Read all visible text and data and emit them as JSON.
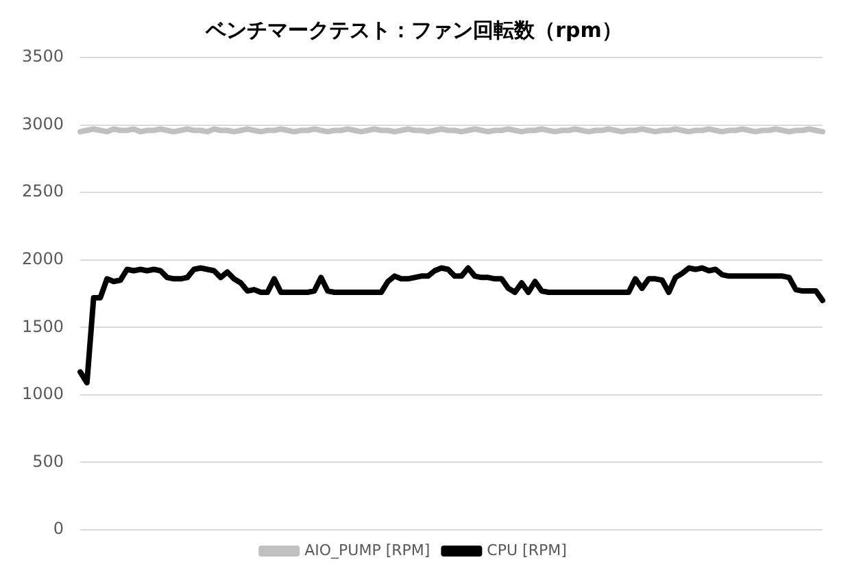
{
  "chart_data": {
    "type": "line",
    "title": "ベンチマークテスト：ファン回転数（rpm）",
    "categories": [
      null,
      null,
      null,
      null,
      null,
      null,
      null,
      null,
      null,
      null,
      null,
      null,
      null,
      null,
      null,
      null,
      null,
      null,
      null,
      null,
      null,
      null,
      null,
      null,
      null,
      null,
      null,
      null,
      null,
      null,
      null,
      null,
      null,
      null,
      null,
      null,
      null,
      null,
      null,
      null,
      null,
      null,
      null,
      null,
      null,
      null,
      null,
      null,
      null,
      null,
      null,
      null,
      null,
      null,
      null,
      null,
      null,
      null,
      null,
      null,
      null,
      null,
      null,
      null,
      null,
      null,
      null,
      null,
      null,
      null,
      null,
      null,
      null,
      null,
      null,
      null,
      null,
      null,
      null,
      null,
      null,
      null,
      null,
      null,
      null,
      null,
      null,
      null,
      null,
      null,
      null,
      null,
      null,
      null,
      null,
      null,
      null,
      null,
      null,
      null,
      null,
      null,
      null,
      null,
      null,
      null,
      null,
      null,
      null,
      null,
      null,
      null
    ],
    "series": [
      {
        "name": "AIO_PUMP [RPM]",
        "color": "#c0c0c0",
        "values": [
          2950,
          2960,
          2970,
          2960,
          2950,
          2970,
          2960,
          2960,
          2970,
          2950,
          2960,
          2960,
          2970,
          2960,
          2950,
          2960,
          2970,
          2960,
          2960,
          2950,
          2970,
          2960,
          2960,
          2950,
          2960,
          2970,
          2960,
          2950,
          2960,
          2960,
          2970,
          2960,
          2950,
          2960,
          2960,
          2970,
          2960,
          2950,
          2960,
          2960,
          2970,
          2960,
          2950,
          2960,
          2970,
          2960,
          2960,
          2950,
          2960,
          2970,
          2960,
          2960,
          2950,
          2960,
          2970,
          2960,
          2960,
          2950,
          2960,
          2970,
          2960,
          2950,
          2960,
          2960,
          2970,
          2960,
          2950,
          2960,
          2960,
          2970,
          2960,
          2950,
          2960,
          2960,
          2970,
          2960,
          2950,
          2960,
          2960,
          2970,
          2960,
          2950,
          2960,
          2960,
          2970,
          2960,
          2950,
          2960,
          2960,
          2970,
          2960,
          2950,
          2960,
          2960,
          2970,
          2960,
          2950,
          2960,
          2960,
          2970,
          2960,
          2950,
          2960,
          2960,
          2970,
          2960,
          2950,
          2960,
          2960,
          2970,
          2960,
          2950
        ]
      },
      {
        "name": "CPU [RPM]",
        "color": "#000000",
        "values": [
          1170,
          1090,
          1720,
          1720,
          1860,
          1840,
          1850,
          1930,
          1920,
          1930,
          1920,
          1930,
          1920,
          1870,
          1860,
          1860,
          1870,
          1930,
          1940,
          1930,
          1920,
          1870,
          1910,
          1860,
          1830,
          1770,
          1780,
          1760,
          1760,
          1860,
          1760,
          1760,
          1760,
          1760,
          1760,
          1770,
          1870,
          1770,
          1760,
          1760,
          1760,
          1760,
          1760,
          1760,
          1760,
          1760,
          1840,
          1880,
          1860,
          1860,
          1870,
          1880,
          1880,
          1920,
          1940,
          1930,
          1880,
          1880,
          1940,
          1880,
          1870,
          1870,
          1860,
          1860,
          1790,
          1760,
          1830,
          1760,
          1840,
          1770,
          1760,
          1760,
          1760,
          1760,
          1760,
          1760,
          1760,
          1760,
          1760,
          1760,
          1760,
          1760,
          1760,
          1860,
          1790,
          1860,
          1860,
          1850,
          1760,
          1870,
          1900,
          1940,
          1930,
          1940,
          1920,
          1930,
          1890,
          1880,
          1880,
          1880,
          1880,
          1880,
          1880,
          1880,
          1880,
          1880,
          1870,
          1780,
          1770,
          1770,
          1770,
          1700
        ]
      }
    ],
    "ylim": [
      0,
      3500
    ],
    "yticks": [
      0,
      500,
      1000,
      1500,
      2000,
      2500,
      3000,
      3500
    ],
    "grid": "y",
    "legend": "bottom",
    "tick_labels": "y",
    "marker": "none",
    "line_style": "solid"
  }
}
